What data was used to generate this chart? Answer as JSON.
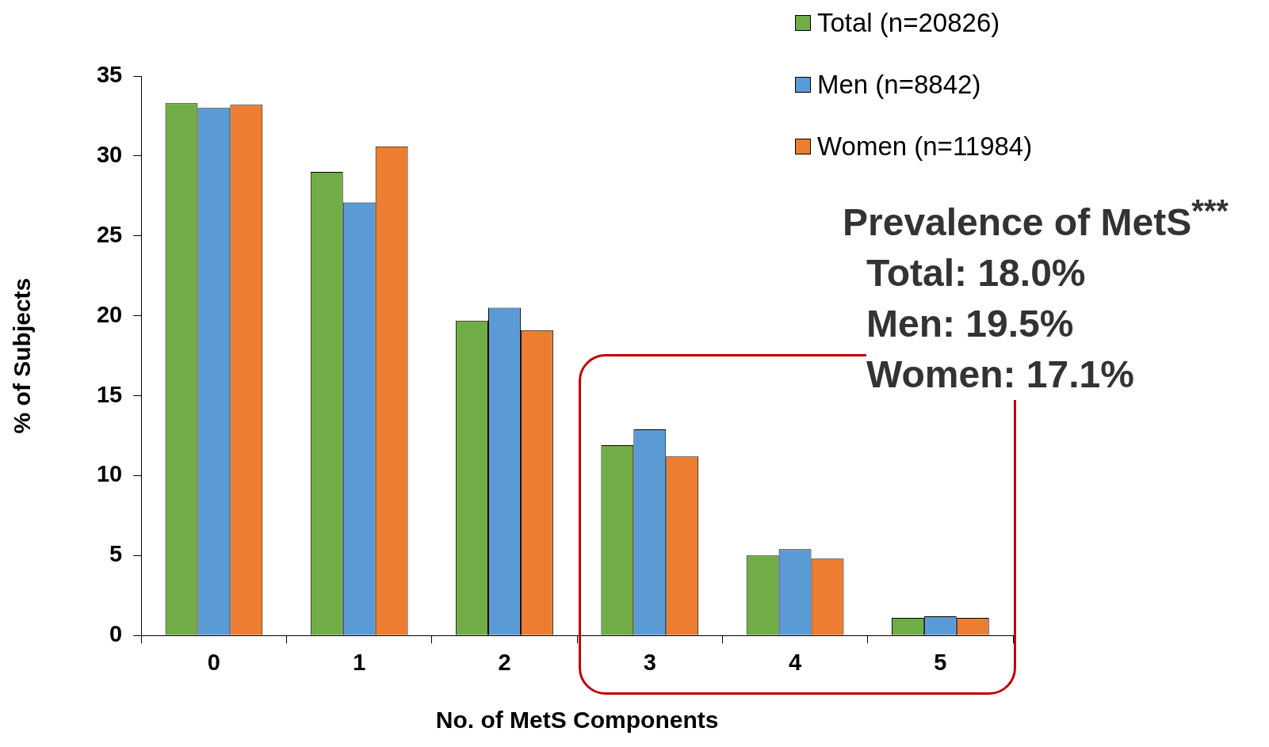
{
  "chart_data": {
    "type": "bar",
    "categories": [
      "0",
      "1",
      "2",
      "3",
      "4",
      "5"
    ],
    "series": [
      {
        "name": "Total (n=20826)",
        "color": "#70ad47",
        "values": [
          33.3,
          29.0,
          19.7,
          11.9,
          5.0,
          1.1
        ]
      },
      {
        "name": "Men (n=8842)",
        "color": "#5b9bd5",
        "values": [
          33.0,
          27.1,
          20.5,
          12.9,
          5.4,
          1.2
        ]
      },
      {
        "name": "Women (n=11984)",
        "color": "#ed7d31",
        "values": [
          33.2,
          30.6,
          19.1,
          11.2,
          4.8,
          1.1
        ]
      }
    ],
    "xlabel": "No. of MetS Components",
    "ylabel": "% of Subjects",
    "ylim": [
      0,
      35
    ],
    "yticks": [
      0,
      5,
      10,
      15,
      20,
      25,
      30,
      35
    ],
    "legend": "top right",
    "grid": false,
    "annotations": [
      "Prevalence of MetS$^{***}$",
      "Total: 18.0%",
      "Men: 19.5%",
      "Women: 17.1%"
    ]
  }
}
